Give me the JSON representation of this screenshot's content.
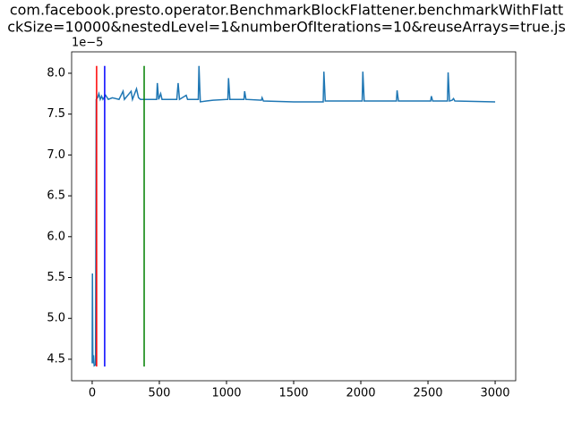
{
  "chart_data": {
    "type": "line",
    "title_lines": [
      "com.facebook.presto.operator.BenchmarkBlockFlattener.benchmarkWithFlatt",
      "ckSize=10000&nestedLevel=1&numberOfIterations=10&reuseArrays=true.js"
    ],
    "y_offset_label": "1e−5",
    "series": [
      {
        "color": "#1f77b4",
        "x": [
          0,
          2,
          5,
          10,
          15,
          25,
          30,
          40,
          50,
          60,
          70,
          80,
          100,
          120,
          150,
          200,
          230,
          240,
          290,
          300,
          330,
          345,
          360,
          480,
          485,
          495,
          510,
          520,
          630,
          640,
          650,
          700,
          710,
          790,
          795,
          805,
          850,
          900,
          1010,
          1015,
          1025,
          1130,
          1135,
          1145,
          1260,
          1265,
          1275,
          1500,
          1720,
          1725,
          1735,
          2010,
          2015,
          2025,
          2265,
          2270,
          2280,
          2520,
          2525,
          2535,
          2645,
          2650,
          2660,
          2680,
          2690,
          2700,
          3000
        ],
        "values": [
          4.45,
          5.55,
          4.45,
          4.55,
          4.42,
          4.43,
          7.68,
          7.7,
          7.75,
          7.68,
          7.72,
          7.68,
          7.73,
          7.68,
          7.7,
          7.68,
          7.78,
          7.68,
          7.78,
          7.68,
          7.81,
          7.7,
          7.68,
          7.68,
          7.88,
          7.68,
          7.75,
          7.68,
          7.68,
          7.88,
          7.68,
          7.73,
          7.68,
          7.68,
          8.09,
          7.65,
          7.66,
          7.67,
          7.68,
          7.94,
          7.68,
          7.68,
          7.78,
          7.68,
          7.67,
          7.7,
          7.66,
          7.65,
          7.65,
          8.02,
          7.66,
          7.66,
          8.02,
          7.66,
          7.66,
          7.79,
          7.66,
          7.66,
          7.72,
          7.66,
          7.66,
          8.01,
          7.66,
          7.67,
          7.69,
          7.66,
          7.65
        ]
      }
    ],
    "vlines": [
      {
        "x": 33,
        "ymin": 4.41,
        "ymax": 8.09,
        "color": "#ff0000"
      },
      {
        "x": 93,
        "ymin": 4.41,
        "ymax": 8.09,
        "color": "#0000ff"
      },
      {
        "x": 387,
        "ymin": 4.41,
        "ymax": 8.09,
        "color": "#008000"
      }
    ],
    "xlim": [
      -153,
      3153
    ],
    "xticks": [
      0,
      500,
      1000,
      1500,
      2000,
      2500,
      3000
    ],
    "ylim": [
      4.237,
      8.262
    ],
    "yticks": [
      4.5,
      {
        "value": 5,
        "label": "5.0"
      },
      5.5,
      {
        "value": 6,
        "label": "6.0"
      },
      6.5,
      {
        "value": 7,
        "label": "7.0"
      },
      7.5,
      {
        "value": 8,
        "label": "8.0"
      }
    ]
  }
}
